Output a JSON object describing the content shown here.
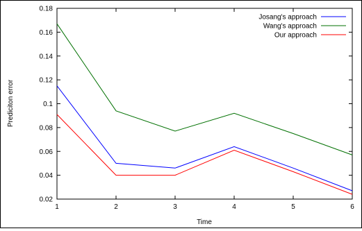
{
  "chart_data": {
    "type": "line",
    "title": "",
    "xlabel": "Time",
    "ylabel": "Prediciton error",
    "x": [
      1,
      2,
      3,
      4,
      5,
      6
    ],
    "x_ticks": [
      "1",
      "2",
      "3",
      "4",
      "5",
      "6"
    ],
    "xlim": [
      1,
      6
    ],
    "y_ticks": [
      "0.02",
      "0.04",
      "0.06",
      "0.08",
      "0.1",
      "0.12",
      "0.14",
      "0.16",
      "0.18"
    ],
    "ylim": [
      0.02,
      0.18
    ],
    "grid": false,
    "legend_position": "top-right",
    "series": [
      {
        "name": "Josang's approach",
        "color": "#0000ff",
        "values": [
          0.115,
          0.05,
          0.046,
          0.064,
          0.046,
          0.027
        ]
      },
      {
        "name": "Wang's approach",
        "color": "#007000",
        "values": [
          0.167,
          0.094,
          0.077,
          0.092,
          0.075,
          0.057
        ]
      },
      {
        "name": "Our approach",
        "color": "#ff0000",
        "values": [
          0.091,
          0.04,
          0.04,
          0.061,
          0.043,
          0.024
        ]
      }
    ]
  }
}
